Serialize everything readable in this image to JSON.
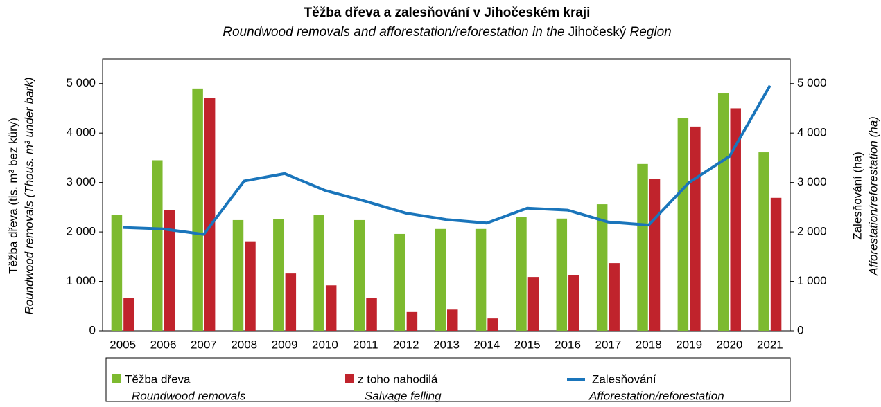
{
  "chart_data": {
    "type": "bar_line",
    "title": "Těžba dřeva a zalesňování v Jihočeském kraji",
    "subtitle": [
      "Roundwood removals and afforestation/reforestation in the",
      "Jihočeský",
      "Region"
    ],
    "ylabel": [
      "Těžba dřeva (tis. m³ bez kůry)",
      "Roundwood removals (Thous. m³ under bark)"
    ],
    "y2label": [
      "Zalesňování (ha)",
      "Afforestation/reforestation (ha)"
    ],
    "categories": [
      "2005",
      "2006",
      "2007",
      "2008",
      "2009",
      "2010",
      "2011",
      "2012",
      "2013",
      "2014",
      "2015",
      "2016",
      "2017",
      "2018",
      "2019",
      "2020",
      "2021"
    ],
    "series": [
      {
        "name": "Těžba dřeva",
        "name_en": "Roundwood removals",
        "color": "#7dba2f",
        "kind": "bar",
        "values": [
          2340,
          3450,
          4900,
          2240,
          2255,
          2350,
          2240,
          1960,
          2060,
          2060,
          2300,
          2270,
          2560,
          3375,
          4310,
          4800,
          3610
        ]
      },
      {
        "name": "z toho nahodilá",
        "name_en": "Salvage felling",
        "color": "#c0232c",
        "kind": "bar",
        "values": [
          670,
          2440,
          4710,
          1810,
          1160,
          920,
          660,
          380,
          430,
          250,
          1090,
          1120,
          1370,
          3070,
          4130,
          4500,
          2690
        ]
      },
      {
        "name": "Zalesňování",
        "name_en": "Afforestation/reforestation",
        "color": "#1a75bb",
        "kind": "line",
        "axis": "y2",
        "values": [
          2090,
          2060,
          1950,
          3030,
          3180,
          2840,
          2620,
          2380,
          2250,
          2180,
          2480,
          2440,
          2200,
          2140,
          3000,
          3530,
          4960
        ]
      }
    ],
    "ylim": [
      0,
      5500
    ],
    "yticks": [
      0,
      {
        "value": 1000,
        "label": "1 000"
      },
      {
        "value": 2000,
        "label": "2 000"
      },
      {
        "value": 3000,
        "label": "3 000"
      },
      {
        "value": 4000,
        "label": "4 000"
      },
      {
        "value": 5000,
        "label": "5 000"
      }
    ],
    "y2lim": [
      0,
      5500
    ],
    "y2ticks": [
      0,
      {
        "value": 1000,
        "label": "1 000"
      },
      {
        "value": 2000,
        "label": "2 000"
      },
      {
        "value": 3000,
        "label": "3 000"
      },
      {
        "value": 4000,
        "label": "4 000"
      },
      {
        "value": 5000,
        "label": "5 000"
      }
    ],
    "legend": "bottom"
  }
}
